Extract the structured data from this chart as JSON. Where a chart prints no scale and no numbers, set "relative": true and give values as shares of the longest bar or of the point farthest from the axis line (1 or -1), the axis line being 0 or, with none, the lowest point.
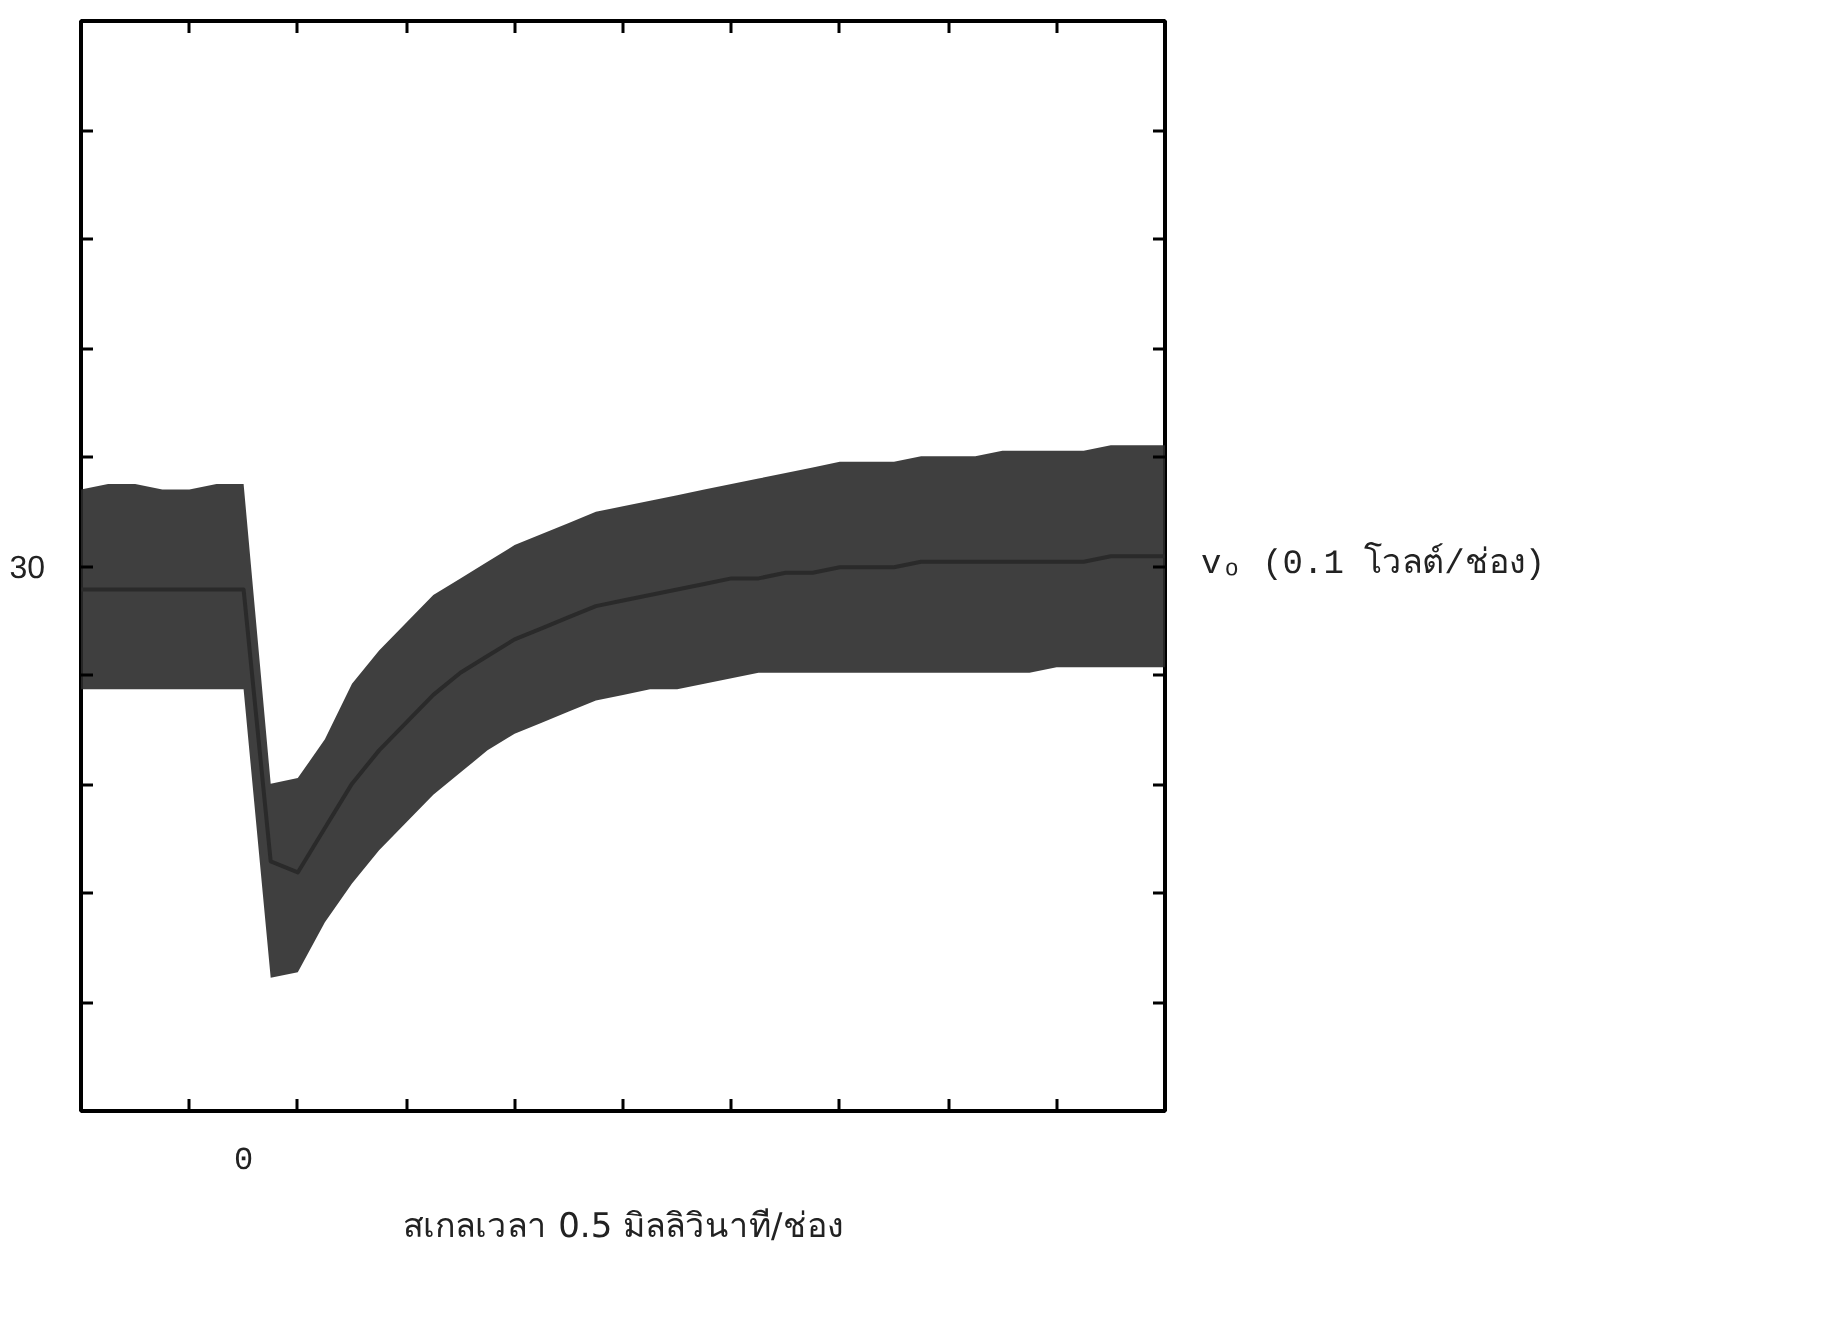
{
  "chart_data": {
    "type": "line",
    "relative": true,
    "xlabel": "สเกลเวลา 0.5 มิลลิวินาที/ช่อง",
    "ylabel": "vₒ (0.1 โวลต์/ช่อง)",
    "annotations": [
      "0",
      "30"
    ],
    "grid": false,
    "categories": [
      null,
      null,
      null,
      null,
      null,
      null,
      null,
      null,
      null,
      null,
      null,
      null,
      null,
      null,
      null,
      null,
      null,
      null,
      null,
      null,
      null,
      null,
      null,
      null,
      null,
      null,
      null,
      null,
      null,
      null,
      null,
      null,
      null,
      null,
      null,
      null,
      null,
      null,
      null,
      null,
      null
    ],
    "series": [
      {
        "color": "#2a2a2a",
        "values": [
          0.94,
          0.94,
          0.94,
          0.94,
          0.94,
          0.94,
          0.94,
          0.45,
          0.43,
          0.51,
          0.59,
          0.65,
          0.7,
          0.75,
          0.79,
          0.82,
          0.85,
          0.87,
          0.89,
          0.91,
          0.92,
          0.93,
          0.94,
          0.95,
          0.96,
          0.96,
          0.97,
          0.97,
          0.98,
          0.98,
          0.98,
          0.99,
          0.99,
          0.99,
          0.99,
          0.99,
          0.99,
          0.99,
          1.0,
          1.0,
          1.0
        ],
        "lower": [
          0.76,
          0.76,
          0.76,
          0.76,
          0.76,
          0.76,
          0.76,
          0.24,
          0.25,
          0.34,
          0.41,
          0.47,
          0.52,
          0.57,
          0.61,
          0.65,
          0.68,
          0.7,
          0.72,
          0.74,
          0.75,
          0.76,
          0.76,
          0.77,
          0.78,
          0.79,
          0.79,
          0.79,
          0.79,
          0.79,
          0.79,
          0.79,
          0.79,
          0.79,
          0.79,
          0.79,
          0.8,
          0.8,
          0.8,
          0.8,
          0.8
        ],
        "upper": [
          1.12,
          1.13,
          1.13,
          1.12,
          1.12,
          1.13,
          1.13,
          0.59,
          0.6,
          0.67,
          0.77,
          0.83,
          0.88,
          0.93,
          0.96,
          0.99,
          1.02,
          1.04,
          1.06,
          1.08,
          1.09,
          1.1,
          1.11,
          1.12,
          1.13,
          1.14,
          1.15,
          1.16,
          1.17,
          1.17,
          1.17,
          1.18,
          1.18,
          1.18,
          1.19,
          1.19,
          1.19,
          1.19,
          1.2,
          1.2,
          1.2
        ]
      }
    ]
  }
}
